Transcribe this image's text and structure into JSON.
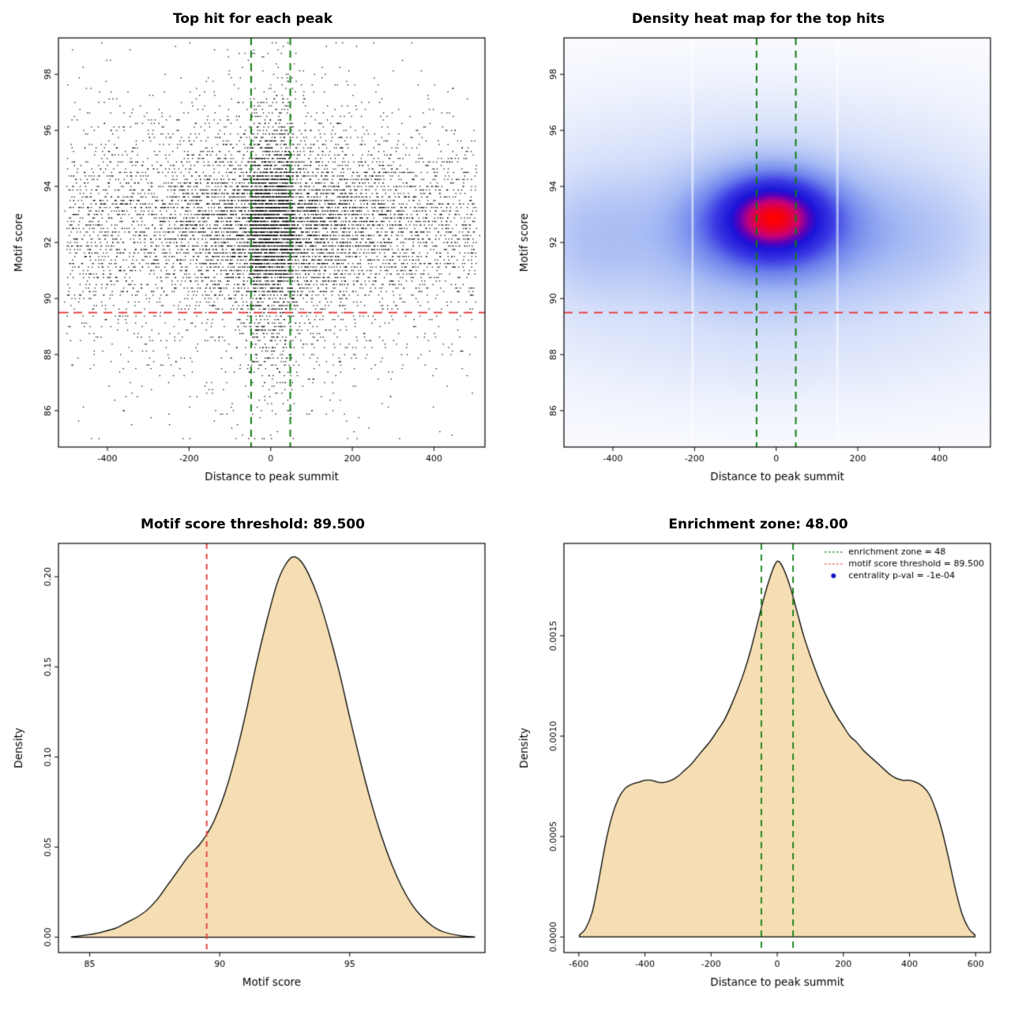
{
  "chart_data": [
    {
      "type": "scatter",
      "title": "Top hit for each peak",
      "xlabel": "Distance to peak summit",
      "ylabel": "Motif score",
      "xlim": [
        -520,
        525
      ],
      "ylim": [
        84.7,
        99.3
      ],
      "xticks": [
        -400,
        -200,
        0,
        200,
        400
      ],
      "xtick_labels": [
        "-400",
        "-200",
        "0",
        "200",
        "400"
      ],
      "yticks": [
        86,
        88,
        90,
        92,
        94,
        96,
        98
      ],
      "ytick_labels": [
        "86",
        "88",
        "90",
        "92",
        "94",
        "96",
        "98"
      ],
      "point_color": "#000000",
      "scatter": {
        "n": 10000,
        "seed": 42,
        "y_components": [
          {
            "frac": 0.75,
            "mean": 92.7,
            "sd": 1.5
          },
          {
            "frac": 0.17,
            "mean": 90.2,
            "sd": 2.2
          },
          {
            "frac": 0.08,
            "mean": 95.3,
            "sd": 1.8
          }
        ],
        "y_quantize": 0.125,
        "y_clip": [
          85.05,
          99.1
        ],
        "x_components": [
          {
            "frac": 0.45,
            "kind": "uniform",
            "range": [
              -500,
              505
            ]
          },
          {
            "frac": 0.35,
            "kind": "normal",
            "mean": 20,
            "sd": 150
          },
          {
            "frac": 0.2,
            "kind": "uniform",
            "range": [
              -50,
              55
            ]
          }
        ],
        "x_clip": [
          -505,
          512
        ]
      },
      "vlines": [
        {
          "x": -48,
          "color": "#0f7d0f",
          "width": 2,
          "dash": [
            9,
            7
          ]
        },
        {
          "x": 48,
          "color": "#0f7d0f",
          "width": 2,
          "dash": [
            9,
            7
          ]
        }
      ],
      "hlines": [
        {
          "y": 89.5,
          "color": "#e64545",
          "width": 2,
          "dash": [
            11,
            8
          ]
        }
      ]
    },
    {
      "type": "heatmap",
      "title": "Density heat map for the top hits",
      "xlabel": "Distance to peak summit",
      "ylabel": "Motif score",
      "xlim": [
        -520,
        525
      ],
      "ylim": [
        84.7,
        99.3
      ],
      "xticks": [
        -400,
        -200,
        0,
        200,
        400
      ],
      "xtick_labels": [
        "-400",
        "-200",
        "0",
        "200",
        "400"
      ],
      "yticks": [
        86,
        88,
        90,
        92,
        94,
        96,
        98
      ],
      "ytick_labels": [
        "86",
        "88",
        "90",
        "92",
        "94",
        "96",
        "98"
      ],
      "heatmap": {
        "grid": 220,
        "gamma": 0.7,
        "components": [
          {
            "a": 1.3,
            "cx": -5,
            "cy": 93.0,
            "sx": 95,
            "sy": 1.0
          },
          {
            "a": 0.8,
            "cx": -10,
            "cy": 92.6,
            "sx": 150,
            "sy": 1.4
          },
          {
            "a": 0.5,
            "cx": -20,
            "cy": 92.3,
            "sx": 310,
            "sy": 2.0
          },
          {
            "a": 0.3,
            "cx": 0,
            "cy": 92.1,
            "sx": 520,
            "sy": 3.1
          },
          {
            "a": 0.13,
            "cx": 0,
            "cy": 87.9,
            "sx": 540,
            "sy": 1.7
          },
          {
            "a": 0.1,
            "cx": -60,
            "cy": 96.4,
            "sx": 480,
            "sy": 1.5
          },
          {
            "a": 0.32,
            "cx": -468,
            "cy": 92.2,
            "sx": 100,
            "sy": 1.7
          },
          {
            "a": 0.2,
            "cx": 380,
            "cy": 92.4,
            "sx": 130,
            "sy": 1.6
          }
        ],
        "colormap": [
          {
            "t": 0.0,
            "c": "#ffffff"
          },
          {
            "t": 0.12,
            "c": "#eef2fd"
          },
          {
            "t": 0.25,
            "c": "#d4defa"
          },
          {
            "t": 0.4,
            "c": "#a7bcf4"
          },
          {
            "t": 0.55,
            "c": "#6f84ec"
          },
          {
            "t": 0.68,
            "c": "#3a3ae4"
          },
          {
            "t": 0.8,
            "c": "#1b12d8"
          },
          {
            "t": 0.86,
            "c": "#5c00b8"
          },
          {
            "t": 0.92,
            "c": "#c4007a"
          },
          {
            "t": 1.0,
            "c": "#ff0000"
          }
        ],
        "white_lines": [
          -205,
          150
        ]
      },
      "vlines": [
        {
          "x": -48,
          "color": "#0f7d0f",
          "width": 2,
          "dash": [
            9,
            7
          ]
        },
        {
          "x": 48,
          "color": "#0f7d0f",
          "width": 2,
          "dash": [
            9,
            7
          ]
        }
      ],
      "hlines": [
        {
          "y": 89.5,
          "color": "#e64545",
          "width": 2,
          "dash": [
            11,
            8
          ]
        }
      ]
    },
    {
      "type": "area",
      "title": "Motif score threshold: 89.500",
      "xlabel": "Motif score",
      "ylabel": "Density",
      "xlim": [
        83.8,
        100.2
      ],
      "ylim": [
        -0.0085,
        0.2185
      ],
      "xticks": [
        85,
        90,
        95
      ],
      "xtick_labels": [
        "85",
        "90",
        "95"
      ],
      "yticks": [
        0,
        0.05,
        0.1,
        0.15,
        0.2
      ],
      "ytick_labels": [
        "0.00",
        "0.05",
        "0.10",
        "0.15",
        "0.20"
      ],
      "fill": "#f5deb3",
      "stroke": "#000000",
      "points": [
        [
          84.3,
          0.0002
        ],
        [
          85.0,
          0.0015
        ],
        [
          85.5,
          0.003
        ],
        [
          86.0,
          0.005
        ],
        [
          86.4,
          0.008
        ],
        [
          86.8,
          0.011
        ],
        [
          87.2,
          0.015
        ],
        [
          87.6,
          0.021
        ],
        [
          88.0,
          0.029
        ],
        [
          88.4,
          0.037
        ],
        [
          88.8,
          0.045
        ],
        [
          89.2,
          0.051
        ],
        [
          89.5,
          0.057
        ],
        [
          89.8,
          0.065
        ],
        [
          90.2,
          0.08
        ],
        [
          90.6,
          0.1
        ],
        [
          91.0,
          0.124
        ],
        [
          91.4,
          0.151
        ],
        [
          91.8,
          0.175
        ],
        [
          92.2,
          0.196
        ],
        [
          92.5,
          0.206
        ],
        [
          92.8,
          0.211
        ],
        [
          93.1,
          0.209
        ],
        [
          93.4,
          0.202
        ],
        [
          93.8,
          0.188
        ],
        [
          94.2,
          0.169
        ],
        [
          94.6,
          0.147
        ],
        [
          95.0,
          0.122
        ],
        [
          95.4,
          0.098
        ],
        [
          95.8,
          0.076
        ],
        [
          96.2,
          0.057
        ],
        [
          96.6,
          0.041
        ],
        [
          97.0,
          0.028
        ],
        [
          97.4,
          0.018
        ],
        [
          97.8,
          0.011
        ],
        [
          98.2,
          0.006
        ],
        [
          98.6,
          0.003
        ],
        [
          99.2,
          0.001
        ],
        [
          99.8,
          0.0002
        ]
      ],
      "vlines": [
        {
          "x": 89.5,
          "color": "#e64545",
          "width": 2,
          "dash": [
            7,
            6
          ]
        }
      ],
      "hlines": []
    },
    {
      "type": "area",
      "title": "Enrichment zone: 48.00",
      "xlabel": "Distance to peak summit",
      "ylabel": "Density",
      "xlim": [
        -645,
        645
      ],
      "ylim": [
        -7.8e-05,
        0.00196
      ],
      "xticks": [
        -600,
        -400,
        -200,
        0,
        200,
        400,
        600
      ],
      "xtick_labels": [
        "-600",
        "-400",
        "-200",
        "0",
        "200",
        "400",
        "600"
      ],
      "yticks": [
        0,
        0.0005,
        0.001,
        0.0015
      ],
      "ytick_labels": [
        "0.0000",
        "0.0005",
        "0.0010",
        "0.0015"
      ],
      "fill": "#f5deb3",
      "stroke": "#000000",
      "points": [
        [
          -598,
          1e-05
        ],
        [
          -580,
          4e-05
        ],
        [
          -560,
          0.00012
        ],
        [
          -540,
          0.00028
        ],
        [
          -520,
          0.00046
        ],
        [
          -500,
          0.0006
        ],
        [
          -480,
          0.00069
        ],
        [
          -460,
          0.00074
        ],
        [
          -440,
          0.00076
        ],
        [
          -420,
          0.00077
        ],
        [
          -400,
          0.00078
        ],
        [
          -380,
          0.00078
        ],
        [
          -360,
          0.00077
        ],
        [
          -340,
          0.00077
        ],
        [
          -320,
          0.00078
        ],
        [
          -300,
          0.0008
        ],
        [
          -280,
          0.00083
        ],
        [
          -260,
          0.00086
        ],
        [
          -240,
          0.0009
        ],
        [
          -220,
          0.00094
        ],
        [
          -200,
          0.00098
        ],
        [
          -180,
          0.00103
        ],
        [
          -160,
          0.00108
        ],
        [
          -140,
          0.00115
        ],
        [
          -120,
          0.00123
        ],
        [
          -100,
          0.00132
        ],
        [
          -80,
          0.00143
        ],
        [
          -60,
          0.00156
        ],
        [
          -40,
          0.00169
        ],
        [
          -20,
          0.0018
        ],
        [
          -5,
          0.00186
        ],
        [
          5,
          0.00187
        ],
        [
          20,
          0.00183
        ],
        [
          40,
          0.00174
        ],
        [
          60,
          0.00162
        ],
        [
          80,
          0.0015
        ],
        [
          100,
          0.0014
        ],
        [
          120,
          0.00131
        ],
        [
          140,
          0.00123
        ],
        [
          160,
          0.00116
        ],
        [
          180,
          0.0011
        ],
        [
          200,
          0.00105
        ],
        [
          220,
          0.001
        ],
        [
          240,
          0.00097
        ],
        [
          260,
          0.00093
        ],
        [
          280,
          0.0009
        ],
        [
          300,
          0.00087
        ],
        [
          320,
          0.00084
        ],
        [
          340,
          0.00081
        ],
        [
          360,
          0.00079
        ],
        [
          380,
          0.00078
        ],
        [
          400,
          0.00078
        ],
        [
          420,
          0.00077
        ],
        [
          440,
          0.00075
        ],
        [
          460,
          0.00071
        ],
        [
          480,
          0.00063
        ],
        [
          500,
          0.00052
        ],
        [
          520,
          0.00038
        ],
        [
          540,
          0.00023
        ],
        [
          560,
          0.00011
        ],
        [
          580,
          4e-05
        ],
        [
          598,
          1e-05
        ]
      ],
      "vlines": [
        {
          "x": -48,
          "color": "#0f7d0f",
          "width": 1.8,
          "dash": [
            8,
            6
          ]
        },
        {
          "x": 48,
          "color": "#0f7d0f",
          "width": 1.8,
          "dash": [
            8,
            6
          ]
        }
      ],
      "hlines": [],
      "legend": {
        "entries": [
          {
            "marker": "dotted-line",
            "color": "#0f7d0f",
            "label": "enrichment zone = 48"
          },
          {
            "marker": "dotted-line",
            "color": "#e64545",
            "label": "motif score threshold = 89.500"
          },
          {
            "marker": "point",
            "color": "#1414cc",
            "label": "centrality p-val = -1e-04"
          }
        ]
      }
    }
  ]
}
